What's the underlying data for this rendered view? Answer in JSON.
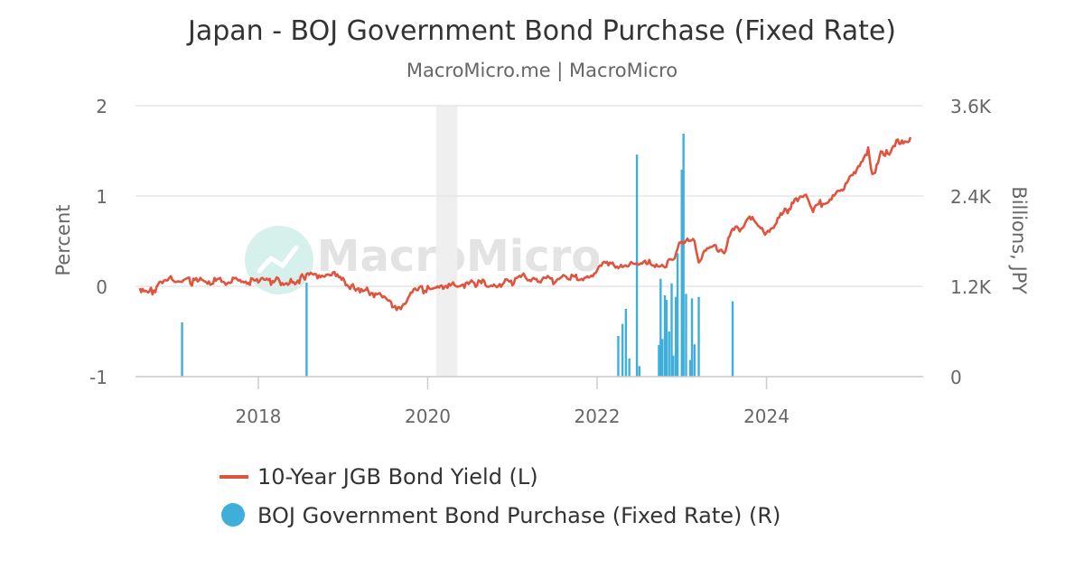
{
  "chart_data": {
    "type": "line",
    "title": "Japan - BOJ Government Bond Purchase (Fixed Rate)",
    "subtitle": "MacroMicro.me | MacroMicro",
    "watermark": "MacroMicro",
    "y_left": {
      "label": "Percent",
      "range": [
        -1,
        2
      ],
      "ticks": [
        {
          "value": 2,
          "label": "2"
        },
        {
          "value": 1,
          "label": "1"
        },
        {
          "value": 0,
          "label": "0"
        },
        {
          "value": -1,
          "label": "-1"
        }
      ]
    },
    "y_right": {
      "label": "Billions, JPY",
      "range": [
        0,
        3600
      ],
      "ticks": [
        {
          "value": 3600,
          "label": "3.6K"
        },
        {
          "value": 2400,
          "label": "2.4K"
        },
        {
          "value": 1200,
          "label": "1.2K"
        },
        {
          "value": 0,
          "label": "0"
        }
      ]
    },
    "x_axis": {
      "range": [
        2016.55,
        2025.85
      ],
      "ticks": [
        {
          "value": 2018,
          "label": "2018"
        },
        {
          "value": 2020,
          "label": "2020"
        },
        {
          "value": 2022,
          "label": "2022"
        },
        {
          "value": 2024,
          "label": "2024"
        }
      ]
    },
    "shaded_regions": [
      {
        "from": 2020.1,
        "to": 2020.35
      }
    ],
    "grid": true,
    "legend_position": "bottom",
    "series": [
      {
        "name": "10-Year JGB Bond Yield (L)",
        "type": "line",
        "axis": "left",
        "color": "#e0543d",
        "x": [
          2016.6,
          2016.75,
          2016.9,
          2017.0,
          2017.2,
          2017.5,
          2017.8,
          2018.0,
          2018.2,
          2018.4,
          2018.55,
          2018.65,
          2018.8,
          2018.9,
          2019.1,
          2019.3,
          2019.5,
          2019.6,
          2019.7,
          2019.85,
          2020.0,
          2020.1,
          2020.2,
          2020.3,
          2020.4,
          2020.6,
          2020.8,
          2021.0,
          2021.1,
          2021.25,
          2021.5,
          2021.7,
          2021.9,
          2022.0,
          2022.15,
          2022.3,
          2022.45,
          2022.6,
          2022.75,
          2022.9,
          2022.97,
          2023.0,
          2023.05,
          2023.15,
          2023.2,
          2023.3,
          2023.4,
          2023.5,
          2023.6,
          2023.7,
          2023.8,
          2023.9,
          2024.0,
          2024.1,
          2024.3,
          2024.45,
          2024.55,
          2024.6,
          2024.7,
          2024.9,
          2025.0,
          2025.15,
          2025.2,
          2025.25,
          2025.35,
          2025.45,
          2025.55,
          2025.7
        ],
        "y": [
          -0.02,
          -0.05,
          0.05,
          0.08,
          0.05,
          0.06,
          0.06,
          0.05,
          0.06,
          0.05,
          0.1,
          0.11,
          0.15,
          0.12,
          0.0,
          -0.05,
          -0.15,
          -0.25,
          -0.2,
          -0.05,
          -0.03,
          0.02,
          -0.05,
          0.03,
          0.02,
          0.03,
          0.03,
          0.05,
          0.1,
          0.1,
          0.06,
          0.1,
          0.1,
          0.2,
          0.25,
          0.24,
          0.23,
          0.25,
          0.25,
          0.26,
          0.45,
          0.5,
          0.5,
          0.48,
          0.3,
          0.4,
          0.43,
          0.4,
          0.6,
          0.65,
          0.8,
          0.65,
          0.6,
          0.7,
          0.9,
          1.05,
          0.85,
          0.9,
          0.95,
          1.05,
          1.2,
          1.45,
          1.5,
          1.2,
          1.5,
          1.45,
          1.6,
          1.65
        ]
      },
      {
        "name": "BOJ Government Bond Purchase (Fixed Rate) (R)",
        "type": "bar",
        "axis": "right",
        "color": "#3fafda",
        "x": [
          2017.1,
          2018.57,
          2022.25,
          2022.3,
          2022.34,
          2022.38,
          2022.47,
          2022.5,
          2022.73,
          2022.75,
          2022.77,
          2022.8,
          2022.82,
          2022.85,
          2022.88,
          2022.9,
          2022.93,
          2022.95,
          2023.0,
          2023.02,
          2023.05,
          2023.1,
          2023.12,
          2023.15,
          2023.2,
          2023.6
        ],
        "y": [
          720,
          1250,
          540,
          700,
          900,
          240,
          2950,
          140,
          420,
          1300,
          500,
          1080,
          1020,
          600,
          1240,
          280,
          1060,
          1640,
          2750,
          3230,
          1100,
          220,
          1040,
          430,
          1060,
          1000
        ]
      }
    ]
  }
}
